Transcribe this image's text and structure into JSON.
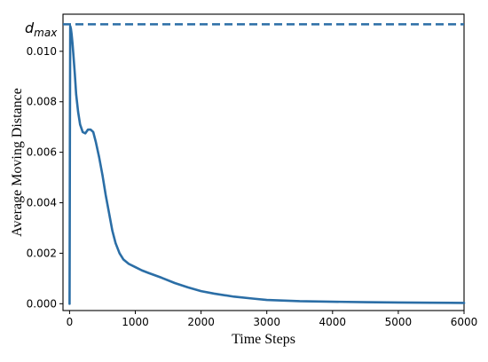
{
  "chart_data": {
    "type": "line",
    "title": "",
    "xlabel": "Time Steps",
    "ylabel": "Average Moving Distance",
    "xlim": [
      -100,
      6000
    ],
    "ylim": [
      -0.00027,
      0.01147
    ],
    "x_ticks": [
      0,
      1000,
      2000,
      3000,
      4000,
      5000,
      6000
    ],
    "x_tick_labels": [
      "0",
      "1000",
      "2000",
      "3000",
      "4000",
      "5000",
      "6000"
    ],
    "y_ticks": [
      0.0,
      0.002,
      0.004,
      0.006,
      0.008,
      0.01
    ],
    "y_tick_labels": [
      "0.000",
      "0.002",
      "0.004",
      "0.006",
      "0.008",
      "0.010"
    ],
    "grid": false,
    "line_color": "#2b6ea6",
    "reference_line": {
      "label_main": "d",
      "label_sub": "max",
      "y": 0.01107,
      "style": "dashed"
    },
    "series": [
      {
        "x": [
          0,
          5,
          10,
          20,
          30,
          45,
          60,
          80,
          100,
          130,
          160,
          200,
          240,
          280,
          320,
          360,
          400,
          450,
          500,
          550,
          600,
          650,
          700,
          760,
          820,
          900,
          1000,
          1100,
          1200,
          1400,
          1600,
          1800,
          2000,
          2200,
          2500,
          2800,
          3000,
          3500,
          4000,
          4500,
          5000,
          5500,
          6000
        ],
        "y": [
          0.0,
          0.0065,
          0.011,
          0.0109,
          0.0107,
          0.0103,
          0.0098,
          0.0091,
          0.0083,
          0.0076,
          0.0071,
          0.0068,
          0.00675,
          0.0069,
          0.0069,
          0.0068,
          0.0064,
          0.0058,
          0.0051,
          0.0043,
          0.0036,
          0.0029,
          0.0024,
          0.002,
          0.00175,
          0.00158,
          0.00145,
          0.00132,
          0.00122,
          0.00103,
          0.00082,
          0.00065,
          0.0005,
          0.0004,
          0.00028,
          0.0002,
          0.00015,
          0.0001,
          8e-05,
          6e-05,
          5e-05,
          4e-05,
          3e-05
        ]
      }
    ]
  }
}
